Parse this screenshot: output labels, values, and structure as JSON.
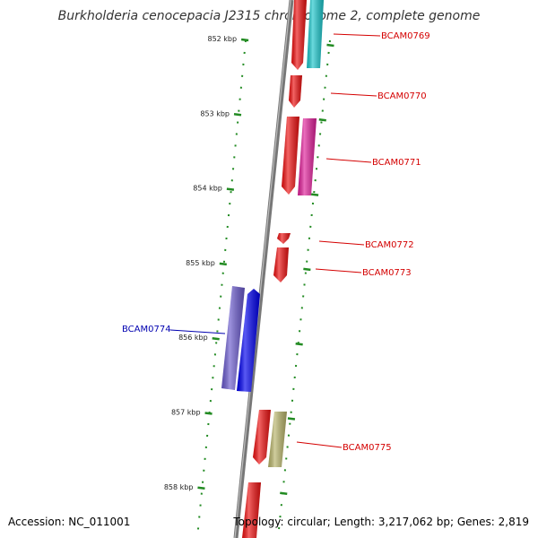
{
  "title": "Burkholderia cenocepacia J2315 chromosome 2, complete genome",
  "accession": "Accession: NC_011001",
  "topology": "Topology: circular; Length: 3,217,062 bp; Genes: 2,819",
  "colors": {
    "backbone": "#777777",
    "tick": "#228B22",
    "label_red": "#D40000",
    "label_blue": "#0000B0"
  },
  "ticks": [
    {
      "label": "852 kbp",
      "kbp": 852
    },
    {
      "label": "853 kbp",
      "kbp": 853
    },
    {
      "label": "854 kbp",
      "kbp": 854
    },
    {
      "label": "855 kbp",
      "kbp": 855
    },
    {
      "label": "856 kbp",
      "kbp": 856
    },
    {
      "label": "857 kbp",
      "kbp": 857
    },
    {
      "label": "858 kbp",
      "kbp": 858
    }
  ],
  "genes": [
    {
      "name": "BCAM0769",
      "strand": "forward",
      "color": "#EE1111"
    },
    {
      "name": "BCAM0770",
      "strand": "forward",
      "color": "#EE1111"
    },
    {
      "name": "BCAM0771",
      "strand": "forward",
      "color": "#EE1111"
    },
    {
      "name": "BCAM0772",
      "strand": "forward",
      "color": "#EE1111"
    },
    {
      "name": "BCAM0773",
      "strand": "forward",
      "color": "#EE1111"
    },
    {
      "name": "BCAM0774",
      "strand": "reverse",
      "color": "#0000EE"
    },
    {
      "name": "BCAM0775",
      "strand": "forward",
      "color": "#EE1111"
    }
  ],
  "features": [
    {
      "name": "cyan-feature",
      "color": "#1CC7CC"
    },
    {
      "name": "magenta-feature",
      "color": "#E0209A"
    },
    {
      "name": "purple-feature",
      "color": "#6A5ACD"
    },
    {
      "name": "khaki-feature",
      "color": "#B8B46A"
    }
  ]
}
